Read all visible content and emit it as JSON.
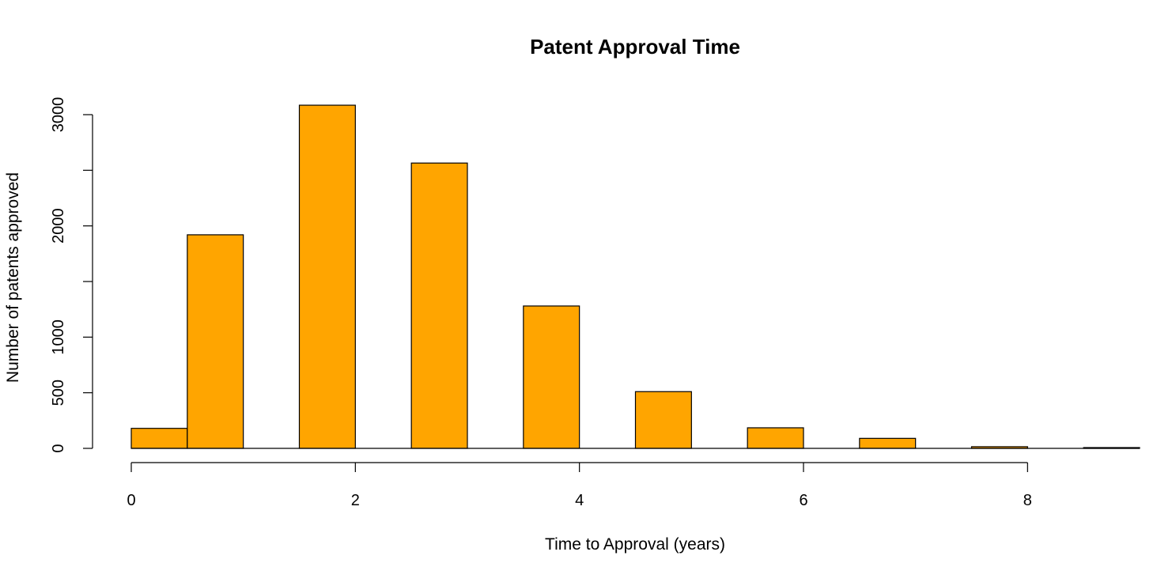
{
  "chart_data": {
    "type": "bar",
    "title": "Patent Approval Time",
    "xlabel": "Time to Approval (years)",
    "ylabel": "Number of patents approved",
    "bins": [
      {
        "start": 0.0,
        "end": 0.5,
        "count": 180
      },
      {
        "start": 0.5,
        "end": 1.0,
        "count": 1920
      },
      {
        "start": 1.0,
        "end": 1.5,
        "count": 0
      },
      {
        "start": 1.5,
        "end": 2.0,
        "count": 3085
      },
      {
        "start": 2.0,
        "end": 2.5,
        "count": 0
      },
      {
        "start": 2.5,
        "end": 3.0,
        "count": 2565
      },
      {
        "start": 3.0,
        "end": 3.5,
        "count": 0
      },
      {
        "start": 3.5,
        "end": 4.0,
        "count": 1280
      },
      {
        "start": 4.0,
        "end": 4.5,
        "count": 0
      },
      {
        "start": 4.5,
        "end": 5.0,
        "count": 510
      },
      {
        "start": 5.0,
        "end": 5.5,
        "count": 0
      },
      {
        "start": 5.5,
        "end": 6.0,
        "count": 185
      },
      {
        "start": 6.0,
        "end": 6.5,
        "count": 0
      },
      {
        "start": 6.5,
        "end": 7.0,
        "count": 90
      },
      {
        "start": 7.0,
        "end": 7.5,
        "count": 0
      },
      {
        "start": 7.5,
        "end": 8.0,
        "count": 15
      },
      {
        "start": 8.0,
        "end": 8.5,
        "count": 0
      },
      {
        "start": 8.5,
        "end": 9.0,
        "count": 5
      }
    ],
    "xlim": [
      0,
      9
    ],
    "ylim": [
      0,
      3000
    ],
    "xticks": [
      0,
      2,
      4,
      6,
      8
    ],
    "xtick_labels": [
      "0",
      "2",
      "4",
      "6",
      "8"
    ],
    "yticks": [
      0,
      500,
      1000,
      1500,
      2000,
      2500,
      3000
    ],
    "ytick_labels": [
      "0",
      "500",
      "1000",
      "",
      "2000",
      "",
      "3000"
    ],
    "bar_color": "#FFA500",
    "edge_color": "#000000",
    "grid": false,
    "legend": "none"
  }
}
